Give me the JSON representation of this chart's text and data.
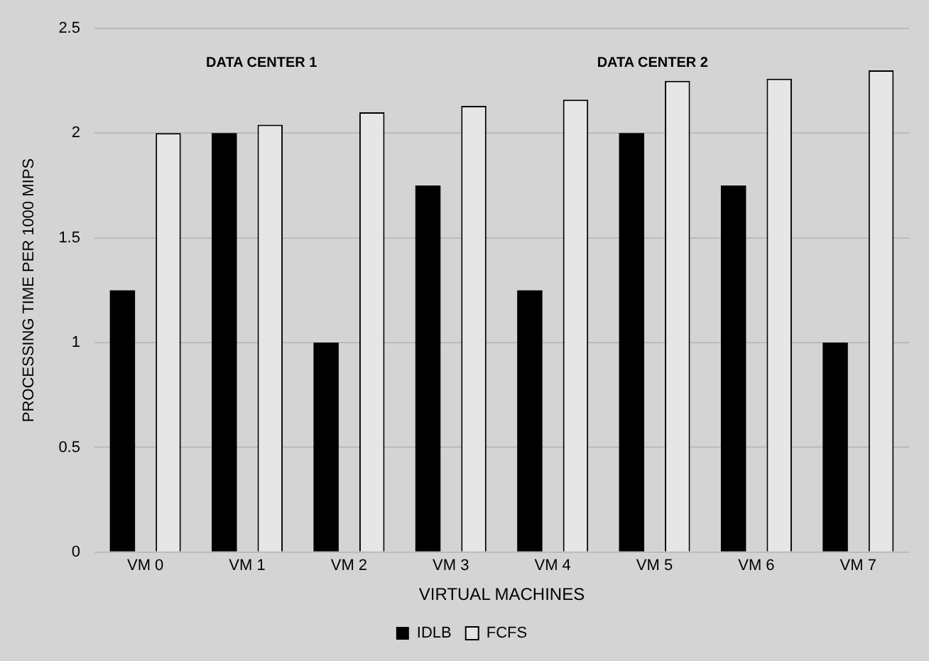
{
  "chart_data": {
    "type": "bar",
    "xlabel": "VIRTUAL MACHINES",
    "ylabel": "PROCESSING TIME PER 1000 MIPS",
    "categories": [
      "VM 0",
      "VM 1",
      "VM 2",
      "VM 3",
      "VM 4",
      "VM 5",
      "VM 6",
      "VM 7"
    ],
    "series": [
      {
        "name": "IDLB",
        "color": "#000000",
        "values": [
          1.25,
          2,
          1,
          1.75,
          1.25,
          2,
          1.75,
          1
        ]
      },
      {
        "name": "FCFS",
        "color": "#e6e6e6",
        "values": [
          2,
          2.04,
          2.1,
          2.13,
          2.16,
          2.25,
          2.26,
          2.3
        ]
      }
    ],
    "ylim": [
      0,
      2.5
    ],
    "yticks": [
      0,
      0.5,
      1,
      1.5,
      2,
      2.5
    ],
    "grid": "y",
    "legend": "bottom",
    "annotations": [
      "DATA CENTER 1",
      "DATA CENTER 2"
    ]
  }
}
